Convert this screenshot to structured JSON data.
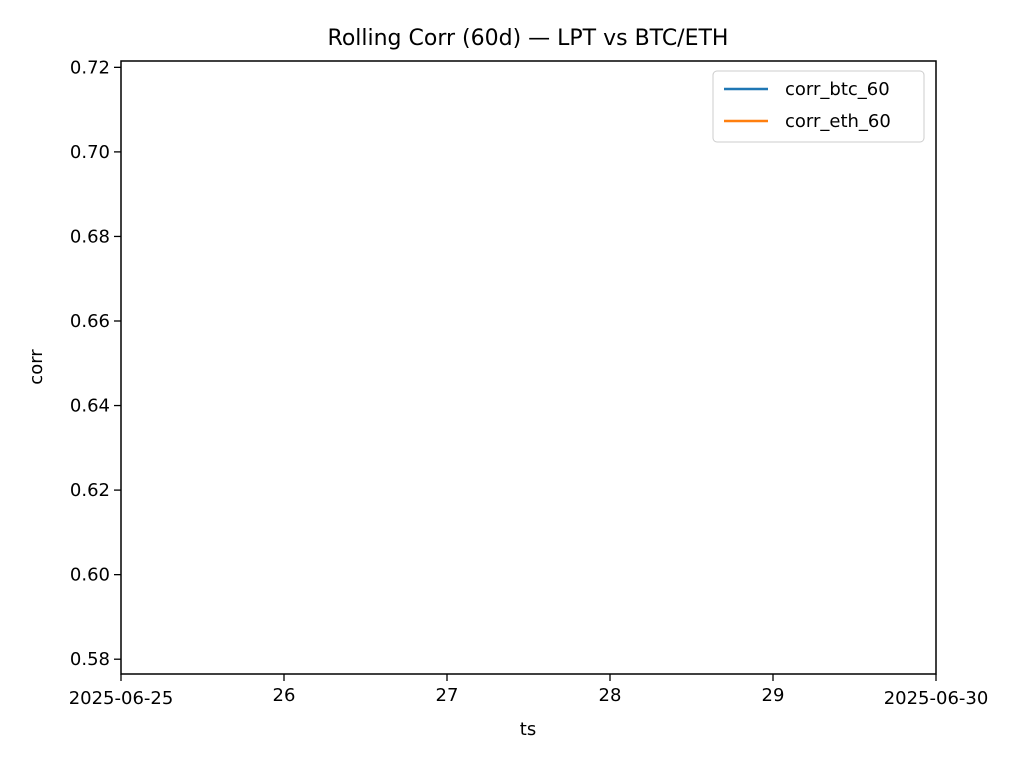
{
  "chart_data": {
    "type": "line",
    "title": "Rolling Corr (60d) — LPT vs BTC/ETH",
    "xlabel": "ts",
    "ylabel": "corr",
    "x_tick_labels": [
      "2025-06-25",
      "26",
      "27",
      "28",
      "29",
      "2025-06-30"
    ],
    "x_ticks": [
      "2025-06-25",
      "2025-06-26",
      "2025-06-27",
      "2025-06-28",
      "2025-06-29",
      "2025-06-30"
    ],
    "xlim": [
      "2025-06-25",
      "2025-06-30"
    ],
    "y_ticks": [
      0.58,
      0.6,
      0.62,
      0.64,
      0.66,
      0.68,
      0.7,
      0.72
    ],
    "y_tick_labels": [
      "0.58",
      "0.60",
      "0.62",
      "0.64",
      "0.66",
      "0.68",
      "0.70",
      "0.72"
    ],
    "ylim": [
      0.5765,
      0.7215
    ],
    "grid": false,
    "legend_position": "top-right",
    "series": [
      {
        "name": "corr_btc_60",
        "color": "#1f77b4",
        "x": [],
        "y": []
      },
      {
        "name": "corr_eth_60",
        "color": "#ff7f0e",
        "x": [],
        "y": []
      }
    ]
  }
}
